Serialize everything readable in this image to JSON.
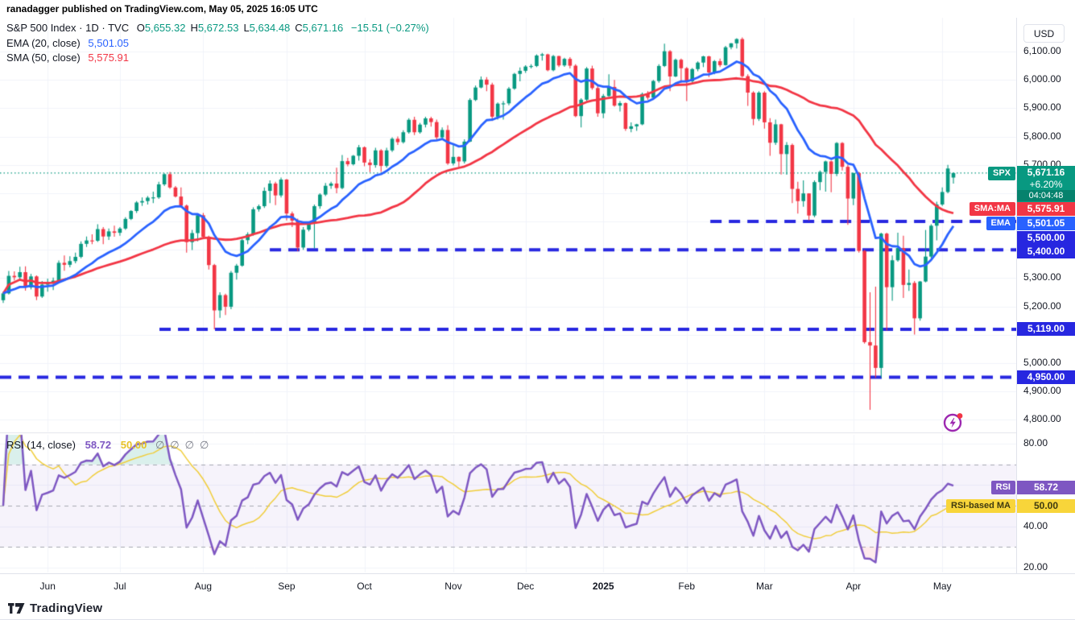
{
  "header": {
    "published_line": "ranadagger published on TradingView.com, May 05, 2025 16:05 UTC"
  },
  "legend": {
    "symbol": {
      "title": "S&P 500 Index",
      "separator": "·",
      "interval": "1D",
      "exchange": "TVC",
      "ohlc": [
        {
          "label": "O",
          "value": "5,655.32"
        },
        {
          "label": "H",
          "value": "5,672.53"
        },
        {
          "label": "L",
          "value": "5,634.48"
        },
        {
          "label": "C",
          "value": "5,671.16"
        }
      ],
      "change": "−15.51 (−0.27%)"
    },
    "ema": {
      "name": "EMA (20, close)",
      "value": "5,501.05"
    },
    "sma": {
      "name": "SMA (50, close)",
      "value": "5,575.91"
    },
    "rsi": {
      "name": "RSI (14, close)",
      "value": "58.72",
      "ma_value": "50.00",
      "empty_values": [
        "∅",
        "∅",
        "∅",
        "∅"
      ]
    }
  },
  "price_axis": {
    "currency": "USD",
    "ticks": [
      "6,100.00",
      "6,000.00",
      "5,900.00",
      "5,800.00",
      "5,700.00",
      "5,300.00",
      "5,200.00",
      "5,000.00",
      "4,900.00",
      "4,800.00"
    ],
    "tick_values": [
      6100,
      6000,
      5900,
      5800,
      5700,
      5300,
      5200,
      5000,
      4900,
      4800
    ]
  },
  "rsi_axis": {
    "ticks": [
      "80.00",
      "40.00",
      "20.00"
    ],
    "tick_values": [
      80,
      40,
      20
    ]
  },
  "badges": {
    "spx": {
      "tag": "SPX",
      "price": "5,671.16",
      "change_pct": "+6.20%",
      "countdown": "04:04:48"
    },
    "sma": {
      "tag": "SMA:MA",
      "value": "5,575.91"
    },
    "ema": {
      "tag": "EMA",
      "value": "5,501.05"
    },
    "levels": [
      "5,500.00",
      "5,400.00",
      "5,119.00",
      "4,950.00"
    ],
    "rsi": {
      "tag": "RSI",
      "value": "58.72"
    },
    "rsi_ma": {
      "tag": "RSI-based MA",
      "value": "50.00"
    }
  },
  "time_axis": {
    "labels": [
      {
        "text": "Jun",
        "index": 8
      },
      {
        "text": "Jul",
        "index": 21
      },
      {
        "text": "Aug",
        "index": 36
      },
      {
        "text": "Sep",
        "index": 51
      },
      {
        "text": "Oct",
        "index": 65
      },
      {
        "text": "Nov",
        "index": 81
      },
      {
        "text": "Dec",
        "index": 94
      },
      {
        "text": "2025",
        "index": 108,
        "bold": true
      },
      {
        "text": "Feb",
        "index": 123
      },
      {
        "text": "Mar",
        "index": 137
      },
      {
        "text": "Apr",
        "index": 153
      },
      {
        "text": "May",
        "index": 169
      }
    ]
  },
  "footer": {
    "brand": "TradingView"
  },
  "colors": {
    "up": "#089981",
    "down": "#f23645",
    "ema": "#2962ff",
    "sma": "#f23645",
    "level_blue": "#2727e0",
    "last_price": "#089981",
    "rsi_line": "#7e57c2",
    "rsi_ma_line": "#f0cd3a",
    "rsi_band_fill": "rgba(126,87,194,0.07)",
    "grid": "#f0f3fa",
    "band_dash": "#a5a8b1",
    "overbought_fill": "rgba(8,153,129,0.15)",
    "oversold_fill": "rgba(242,54,69,0.10)",
    "tag_yellow": "#f8d53a",
    "tag_yellow_text": "#3f3a10"
  },
  "chart_data": {
    "type": "candlestick",
    "title": "S&P 500 Index · 1D · TVC",
    "unit": "USD",
    "price_range_shown": [
      4758,
      6219
    ],
    "rsi_range_shown": [
      17.7,
      84.3
    ],
    "last_price": 5671.16,
    "indicators": {
      "ema_period": 20,
      "ema_last": 5501.05,
      "sma_period": 50,
      "sma_last": 5575.91,
      "rsi_period": 14,
      "rsi_last": 58.72,
      "rsi_ma_last": 50.0,
      "rsi_bands": [
        70,
        50,
        30
      ]
    },
    "levels": [
      {
        "price": 5500,
        "x_start_frac": 0.699
      },
      {
        "price": 5400,
        "x_start_frac": 0.2655
      },
      {
        "price": 5119,
        "x_start_frac": 0.1569
      },
      {
        "price": 4950,
        "x_start_frac": 0.0
      }
    ],
    "candles": [
      [
        5222,
        5252,
        5212,
        5246
      ],
      [
        5246,
        5325,
        5242,
        5308
      ],
      [
        5308,
        5324,
        5292,
        5303
      ],
      [
        5303,
        5340,
        5298,
        5321
      ],
      [
        5321,
        5342,
        5256,
        5267
      ],
      [
        5267,
        5315,
        5260,
        5306
      ],
      [
        5306,
        5310,
        5222,
        5235
      ],
      [
        5235,
        5290,
        5230,
        5277
      ],
      [
        5277,
        5298,
        5252,
        5283
      ],
      [
        5283,
        5302,
        5258,
        5291
      ],
      [
        5291,
        5362,
        5288,
        5354
      ],
      [
        5354,
        5380,
        5326,
        5347
      ],
      [
        5347,
        5377,
        5338,
        5360
      ],
      [
        5360,
        5390,
        5352,
        5375
      ],
      [
        5375,
        5430,
        5370,
        5421
      ],
      [
        5421,
        5447,
        5410,
        5433
      ],
      [
        5433,
        5455,
        5420,
        5432
      ],
      [
        5432,
        5490,
        5428,
        5473
      ],
      [
        5473,
        5480,
        5420,
        5447
      ],
      [
        5447,
        5475,
        5435,
        5465
      ],
      [
        5465,
        5485,
        5446,
        5460
      ],
      [
        5460,
        5480,
        5450,
        5475
      ],
      [
        5475,
        5515,
        5470,
        5509
      ],
      [
        5509,
        5540,
        5505,
        5537
      ],
      [
        5537,
        5572,
        5530,
        5567
      ],
      [
        5567,
        5585,
        5555,
        5572
      ],
      [
        5572,
        5590,
        5560,
        5584
      ],
      [
        5584,
        5605,
        5565,
        5585
      ],
      [
        5585,
        5640,
        5580,
        5631
      ],
      [
        5631,
        5670,
        5625,
        5667
      ],
      [
        5667,
        5675,
        5615,
        5620
      ],
      [
        5620,
        5625,
        5585,
        5588
      ],
      [
        5588,
        5620,
        5550,
        5556
      ],
      [
        5556,
        5560,
        5390,
        5427
      ],
      [
        5427,
        5470,
        5399,
        5459
      ],
      [
        5459,
        5525,
        5430,
        5522
      ],
      [
        5522,
        5530,
        5440,
        5446
      ],
      [
        5446,
        5450,
        5330,
        5346
      ],
      [
        5346,
        5350,
        5119,
        5186
      ],
      [
        5186,
        5250,
        5160,
        5240
      ],
      [
        5240,
        5245,
        5170,
        5199
      ],
      [
        5199,
        5325,
        5190,
        5319
      ],
      [
        5319,
        5350,
        5295,
        5344
      ],
      [
        5344,
        5440,
        5340,
        5434
      ],
      [
        5434,
        5462,
        5420,
        5455
      ],
      [
        5455,
        5550,
        5450,
        5543
      ],
      [
        5543,
        5560,
        5535,
        5554
      ],
      [
        5554,
        5620,
        5548,
        5608
      ],
      [
        5608,
        5645,
        5565,
        5634
      ],
      [
        5634,
        5640,
        5558,
        5592
      ],
      [
        5592,
        5655,
        5585,
        5648
      ],
      [
        5648,
        5650,
        5504,
        5528
      ],
      [
        5528,
        5535,
        5480,
        5503
      ],
      [
        5503,
        5510,
        5395,
        5408
      ],
      [
        5408,
        5480,
        5400,
        5471
      ],
      [
        5471,
        5500,
        5465,
        5495
      ],
      [
        5495,
        5560,
        5405,
        5554
      ],
      [
        5554,
        5600,
        5545,
        5595
      ],
      [
        5595,
        5636,
        5590,
        5626
      ],
      [
        5626,
        5640,
        5615,
        5634
      ],
      [
        5634,
        5690,
        5600,
        5618
      ],
      [
        5618,
        5735,
        5614,
        5713
      ],
      [
        5713,
        5725,
        5695,
        5702
      ],
      [
        5702,
        5735,
        5698,
        5732
      ],
      [
        5732,
        5770,
        5715,
        5762
      ],
      [
        5762,
        5765,
        5695,
        5708
      ],
      [
        5708,
        5720,
        5674,
        5699
      ],
      [
        5699,
        5760,
        5690,
        5751
      ],
      [
        5751,
        5755,
        5675,
        5696
      ],
      [
        5696,
        5760,
        5690,
        5751
      ],
      [
        5751,
        5797,
        5745,
        5792
      ],
      [
        5792,
        5800,
        5770,
        5780
      ],
      [
        5780,
        5822,
        5775,
        5815
      ],
      [
        5815,
        5865,
        5810,
        5859
      ],
      [
        5859,
        5870,
        5805,
        5815
      ],
      [
        5815,
        5848,
        5810,
        5842
      ],
      [
        5842,
        5870,
        5832,
        5864
      ],
      [
        5864,
        5870,
        5835,
        5851
      ],
      [
        5851,
        5860,
        5790,
        5797
      ],
      [
        5797,
        5832,
        5790,
        5823
      ],
      [
        5823,
        5840,
        5700,
        5705
      ],
      [
        5705,
        5772,
        5698,
        5728
      ],
      [
        5728,
        5730,
        5692,
        5712
      ],
      [
        5712,
        5790,
        5705,
        5782
      ],
      [
        5782,
        5935,
        5780,
        5929
      ],
      [
        5929,
        5980,
        5925,
        5973
      ],
      [
        5973,
        6012,
        5970,
        6001
      ],
      [
        6001,
        6010,
        5960,
        5983
      ],
      [
        5983,
        5990,
        5855,
        5870
      ],
      [
        5870,
        5920,
        5860,
        5916
      ],
      [
        5916,
        5925,
        5860,
        5917
      ],
      [
        5917,
        5975,
        5910,
        5969
      ],
      [
        5969,
        6025,
        5965,
        6021
      ],
      [
        6021,
        6044,
        5995,
        6032
      ],
      [
        6032,
        6052,
        6025,
        6047
      ],
      [
        6047,
        6055,
        6040,
        6049
      ],
      [
        6049,
        6090,
        6045,
        6086
      ],
      [
        6086,
        6095,
        6068,
        6090
      ],
      [
        6090,
        6092,
        6030,
        6034
      ],
      [
        6034,
        6088,
        6030,
        6084
      ],
      [
        6084,
        6085,
        6045,
        6051
      ],
      [
        6051,
        6078,
        6046,
        6074
      ],
      [
        6074,
        6080,
        6040,
        6050
      ],
      [
        6050,
        6055,
        5868,
        5872
      ],
      [
        5872,
        5935,
        5832,
        5930
      ],
      [
        5930,
        6045,
        5925,
        6040
      ],
      [
        6040,
        6050,
        5965,
        5971
      ],
      [
        5971,
        5980,
        5870,
        5882
      ],
      [
        5882,
        5950,
        5865,
        5943
      ],
      [
        5943,
        6020,
        5940,
        5975
      ],
      [
        5975,
        6000,
        5905,
        5909
      ],
      [
        5909,
        5925,
        5888,
        5918
      ],
      [
        5918,
        5920,
        5820,
        5827
      ],
      [
        5827,
        5850,
        5815,
        5836
      ],
      [
        5836,
        5845,
        5820,
        5843
      ],
      [
        5843,
        5955,
        5840,
        5950
      ],
      [
        5950,
        5960,
        5930,
        5937
      ],
      [
        5937,
        6000,
        5932,
        5996
      ],
      [
        5996,
        6055,
        5990,
        6049
      ],
      [
        6049,
        6128,
        6045,
        6101
      ],
      [
        6101,
        6105,
        5960,
        6012
      ],
      [
        6012,
        6075,
        6010,
        6071
      ],
      [
        6071,
        6075,
        5990,
        6041
      ],
      [
        6041,
        6045,
        5925,
        5995
      ],
      [
        5995,
        6042,
        5990,
        6038
      ],
      [
        6038,
        6065,
        6030,
        6061
      ],
      [
        6061,
        6085,
        6045,
        6083
      ],
      [
        6083,
        6085,
        6010,
        6026
      ],
      [
        6026,
        6070,
        6020,
        6066
      ],
      [
        6066,
        6075,
        6045,
        6052
      ],
      [
        6052,
        6120,
        6050,
        6115
      ],
      [
        6115,
        6130,
        6108,
        6129
      ],
      [
        6129,
        6147,
        6111,
        6144
      ],
      [
        6144,
        6150,
        6008,
        6013
      ],
      [
        6013,
        6020,
        5908,
        5955
      ],
      [
        5955,
        5960,
        5840,
        5862
      ],
      [
        5862,
        5960,
        5855,
        5955
      ],
      [
        5955,
        5960,
        5828,
        5850
      ],
      [
        5850,
        5865,
        5732,
        5778
      ],
      [
        5778,
        5860,
        5770,
        5843
      ],
      [
        5843,
        5845,
        5666,
        5738
      ],
      [
        5738,
        5780,
        5665,
        5770
      ],
      [
        5770,
        5775,
        5565,
        5615
      ],
      [
        5615,
        5640,
        5528,
        5572
      ],
      [
        5572,
        5645,
        5552,
        5599
      ],
      [
        5599,
        5600,
        5504,
        5521
      ],
      [
        5521,
        5645,
        5515,
        5639
      ],
      [
        5639,
        5680,
        5610,
        5675
      ],
      [
        5675,
        5715,
        5605,
        5712
      ],
      [
        5712,
        5715,
        5603,
        5668
      ],
      [
        5668,
        5780,
        5660,
        5777
      ],
      [
        5777,
        5780,
        5680,
        5693
      ],
      [
        5693,
        5700,
        5488,
        5581
      ],
      [
        5581,
        5672,
        5558,
        5671
      ],
      [
        5671,
        5675,
        5390,
        5396
      ],
      [
        5396,
        5400,
        5069,
        5074
      ],
      [
        5074,
        5250,
        4835,
        5062
      ],
      [
        5062,
        5270,
        4948,
        4983
      ],
      [
        4983,
        5460,
        4948,
        5457
      ],
      [
        5457,
        5460,
        5115,
        5268
      ],
      [
        5268,
        5380,
        5220,
        5363
      ],
      [
        5363,
        5460,
        5358,
        5406
      ],
      [
        5406,
        5450,
        5230,
        5276
      ],
      [
        5276,
        5330,
        5255,
        5283
      ],
      [
        5283,
        5290,
        5101,
        5158
      ],
      [
        5158,
        5290,
        5150,
        5288
      ],
      [
        5288,
        5470,
        5285,
        5376
      ],
      [
        5376,
        5490,
        5370,
        5485
      ],
      [
        5485,
        5570,
        5433,
        5560
      ],
      [
        5560,
        5620,
        5555,
        5604
      ],
      [
        5604,
        5700,
        5600,
        5687
      ],
      [
        5655,
        5673,
        5634,
        5671
      ]
    ]
  }
}
